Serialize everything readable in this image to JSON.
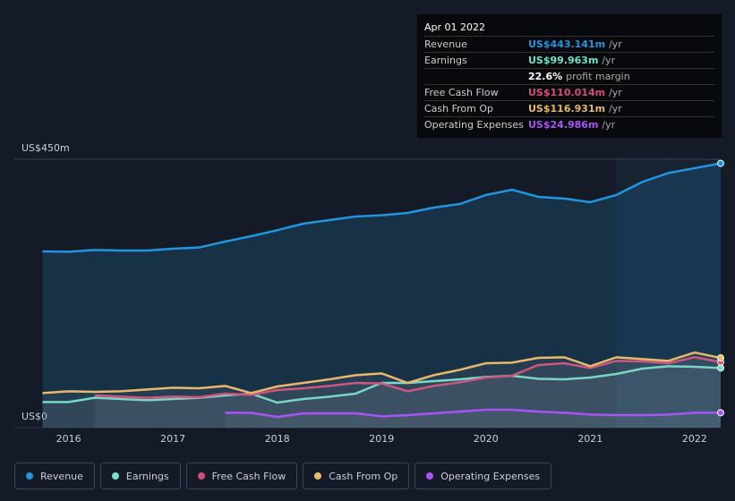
{
  "chart_data": {
    "type": "area",
    "x": [
      2015.75,
      2016,
      2016.25,
      2016.5,
      2016.75,
      2017,
      2017.25,
      2017.5,
      2017.75,
      2018,
      2018.25,
      2018.5,
      2018.75,
      2019,
      2019.25,
      2019.5,
      2019.75,
      2020,
      2020.25,
      2020.5,
      2020.75,
      2021,
      2021.25,
      2021.5,
      2021.75,
      2022,
      2022.25
    ],
    "series": [
      {
        "name": "Revenue",
        "color": "#2394df",
        "values": [
          295.5,
          295,
          298,
          297,
          297,
          300,
          302,
          312,
          321,
          331,
          342,
          348,
          354,
          356,
          360,
          369,
          375,
          390,
          399,
          387,
          384,
          378,
          390,
          412,
          427,
          435,
          443.141
        ]
      },
      {
        "name": "Earnings",
        "color": "#73e1c9",
        "values": [
          43,
          43,
          50,
          48,
          46,
          48,
          50,
          54,
          57,
          42,
          48,
          52,
          57,
          75,
          75,
          78,
          81,
          85,
          87,
          82,
          81,
          84,
          90,
          99,
          103,
          102,
          99.963
        ]
      },
      {
        "name": "Free Cash Flow",
        "color": "#d44d7a",
        "values": [
          null,
          null,
          54,
          52,
          50,
          52,
          51,
          57,
          55,
          63,
          66,
          70,
          75,
          74,
          61,
          70,
          76,
          84,
          87,
          105,
          108,
          100,
          112,
          111,
          108,
          118,
          110.014
        ]
      },
      {
        "name": "Cash From Op",
        "color": "#e8b96a",
        "values": [
          58,
          61,
          60,
          61,
          64,
          67,
          66,
          70,
          58,
          69,
          75,
          81,
          88,
          91,
          75,
          88,
          97,
          108,
          109,
          117,
          118,
          103,
          118,
          115,
          112,
          126,
          116.931
        ]
      },
      {
        "name": "Operating Expenses",
        "color": "#a855f7",
        "values": [
          null,
          null,
          null,
          null,
          null,
          null,
          null,
          25,
          25,
          18,
          24,
          24,
          24,
          19,
          21,
          24,
          27,
          30,
          30,
          27,
          25,
          22,
          21,
          21,
          22,
          25,
          24.986
        ]
      }
    ],
    "xlim": [
      2015.48,
      2022.25
    ],
    "xticks": [
      2016,
      2017,
      2018,
      2019,
      2020,
      2021,
      2022
    ],
    "ylim": [
      0,
      450
    ],
    "yticks": [
      {
        "value": 0,
        "label": "US$0"
      },
      {
        "value": 450,
        "label": "US$450m"
      }
    ]
  },
  "tooltip": {
    "date": "Apr 01 2022",
    "rows": [
      {
        "label": "Revenue",
        "value": "US$443.141m",
        "unit": "/yr"
      },
      {
        "label": "Earnings",
        "value": "US$99.963m",
        "unit": "/yr"
      },
      {
        "label": "Free Cash Flow",
        "value": "US$110.014m",
        "unit": "/yr"
      },
      {
        "label": "Cash From Op",
        "value": "US$116.931m",
        "unit": "/yr"
      },
      {
        "label": "Operating Expenses",
        "value": "US$24.986m",
        "unit": "/yr"
      }
    ],
    "margin": {
      "value": "22.6%",
      "label": "profit margin"
    }
  }
}
